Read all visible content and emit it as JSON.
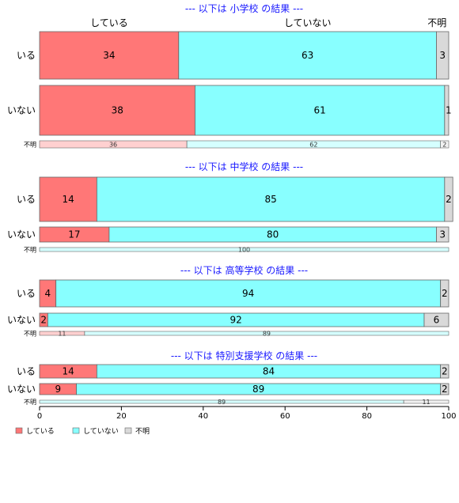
{
  "chart_data": {
    "type": "bar",
    "orientation": "horizontal",
    "stacked": "percent",
    "column_headers": [
      "している",
      "していない",
      "不明"
    ],
    "series": [
      {
        "name": "している",
        "color": "#ff7777"
      },
      {
        "name": "していない",
        "color": "#88ffff"
      },
      {
        "name": "不明",
        "color": "#d9d9d9"
      }
    ],
    "xlim": [
      0,
      100
    ],
    "xticks": [
      0,
      20,
      40,
      60,
      80,
      100
    ],
    "groups": [
      {
        "title": "--- 以下は 小学校 の結果 ---",
        "rows": [
          {
            "label": "いる",
            "values": [
              34,
              63,
              3
            ],
            "labels": [
              "34",
              "63",
              "3"
            ]
          },
          {
            "label": "いない",
            "values": [
              38,
              61,
              1
            ],
            "labels": [
              "38",
              "61",
              "1"
            ]
          },
          {
            "label": "不明",
            "values": [
              36,
              62,
              2
            ],
            "labels": [
              "36",
              "62",
              "2"
            ]
          }
        ]
      },
      {
        "title": "--- 以下は 中学校 の結果 ---",
        "rows": [
          {
            "label": "いる",
            "values": [
              14,
              85,
              2
            ],
            "labels": [
              "14",
              "85",
              "2"
            ]
          },
          {
            "label": "いない",
            "values": [
              17,
              80,
              3
            ],
            "labels": [
              "17",
              "80",
              "3"
            ]
          },
          {
            "label": "不明",
            "values": [
              0,
              100,
              0
            ],
            "labels": [
              "",
              "100",
              ""
            ]
          }
        ]
      },
      {
        "title": "--- 以下は 高等学校 の結果 ---",
        "rows": [
          {
            "label": "いる",
            "values": [
              4,
              94,
              2
            ],
            "labels": [
              "4",
              "94",
              "2"
            ]
          },
          {
            "label": "いない",
            "values": [
              2,
              92,
              6
            ],
            "labels": [
              "2",
              "92",
              "6"
            ]
          },
          {
            "label": "不明",
            "values": [
              11,
              89,
              0
            ],
            "labels": [
              "11",
              "89",
              ""
            ]
          }
        ]
      },
      {
        "title": "--- 以下は 特別支援学校 の結果 ---",
        "rows": [
          {
            "label": "いる",
            "values": [
              14,
              84,
              2
            ],
            "labels": [
              "14",
              "84",
              "2"
            ]
          },
          {
            "label": "いない",
            "values": [
              9,
              89,
              2
            ],
            "labels": [
              "9",
              "89",
              "2"
            ]
          },
          {
            "label": "不明",
            "values": [
              0,
              89,
              11
            ],
            "labels": [
              "",
              "89",
              "11"
            ]
          }
        ]
      }
    ],
    "legend": {
      "position": "bottom-left",
      "entries": [
        "している",
        "していない",
        "不明"
      ]
    }
  }
}
